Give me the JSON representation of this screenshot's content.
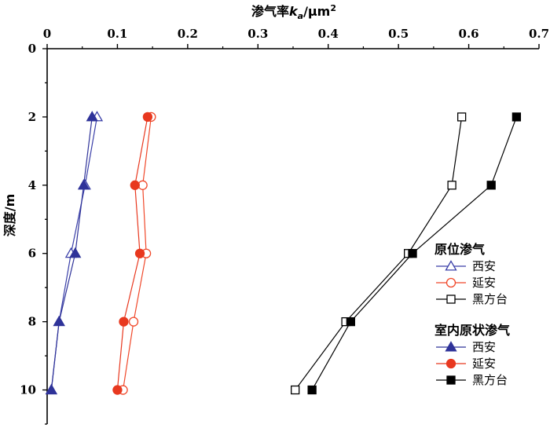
{
  "chart_data": {
    "type": "line",
    "x_axis": {
      "label_prefix": "渗气率",
      "label_var": "k",
      "label_sub": "a",
      "label_suffix": "/μm",
      "label_sup": "2",
      "position": "top",
      "range": [
        0,
        0.7
      ],
      "ticks": [
        "0",
        "0.1",
        "0.2",
        "0.3",
        "0.4",
        "0.5",
        "0.6",
        "0.7"
      ]
    },
    "y_axis": {
      "label": "深度/m",
      "range": [
        0,
        11
      ],
      "inverted": true,
      "ticks": [
        "0",
        "2",
        "4",
        "6",
        "8",
        "10"
      ]
    },
    "legend_groups": [
      {
        "title": "原位渗气",
        "items": [
          "西安",
          "延安",
          "黑方台"
        ]
      },
      {
        "title": "室内原状渗气",
        "items": [
          "西安",
          "延安",
          "黑方台"
        ]
      }
    ],
    "series": [
      {
        "name": "原位渗气 西安",
        "group": 0,
        "marker": "triangle",
        "filled": false,
        "color": "#3a3fa8",
        "x": [
          0.071,
          0.054,
          0.034,
          0.017,
          0.006
        ],
        "y": [
          2,
          4,
          6,
          8,
          10
        ]
      },
      {
        "name": "原位渗气 延安",
        "group": 0,
        "marker": "circle",
        "filled": false,
        "color": "#f0482a",
        "x": [
          0.148,
          0.136,
          0.141,
          0.123,
          0.108
        ],
        "y": [
          2,
          4,
          6,
          8,
          10
        ]
      },
      {
        "name": "原位渗气 黑方台",
        "group": 0,
        "marker": "square",
        "filled": false,
        "color": "#000000",
        "x": [
          0.59,
          0.576,
          0.514,
          0.425,
          0.353
        ],
        "y": [
          2,
          4,
          6,
          8,
          10
        ]
      },
      {
        "name": "室内原状渗气 西安",
        "group": 1,
        "marker": "triangle",
        "filled": true,
        "color": "#2f3399",
        "x": [
          0.064,
          0.052,
          0.04,
          0.017,
          0.006
        ],
        "y": [
          2,
          4,
          6,
          8,
          10
        ]
      },
      {
        "name": "室内原状渗气 延安",
        "group": 1,
        "marker": "circle",
        "filled": true,
        "color": "#e8381f",
        "x": [
          0.143,
          0.125,
          0.132,
          0.109,
          0.1
        ],
        "y": [
          2,
          4,
          6,
          8,
          10
        ]
      },
      {
        "name": "室内原状渗气 黑方台",
        "group": 1,
        "marker": "square",
        "filled": true,
        "color": "#000000",
        "x": [
          0.668,
          0.632,
          0.52,
          0.432,
          0.377
        ],
        "y": [
          2,
          4,
          6,
          8,
          10
        ]
      }
    ],
    "legend_position": "right-center"
  }
}
